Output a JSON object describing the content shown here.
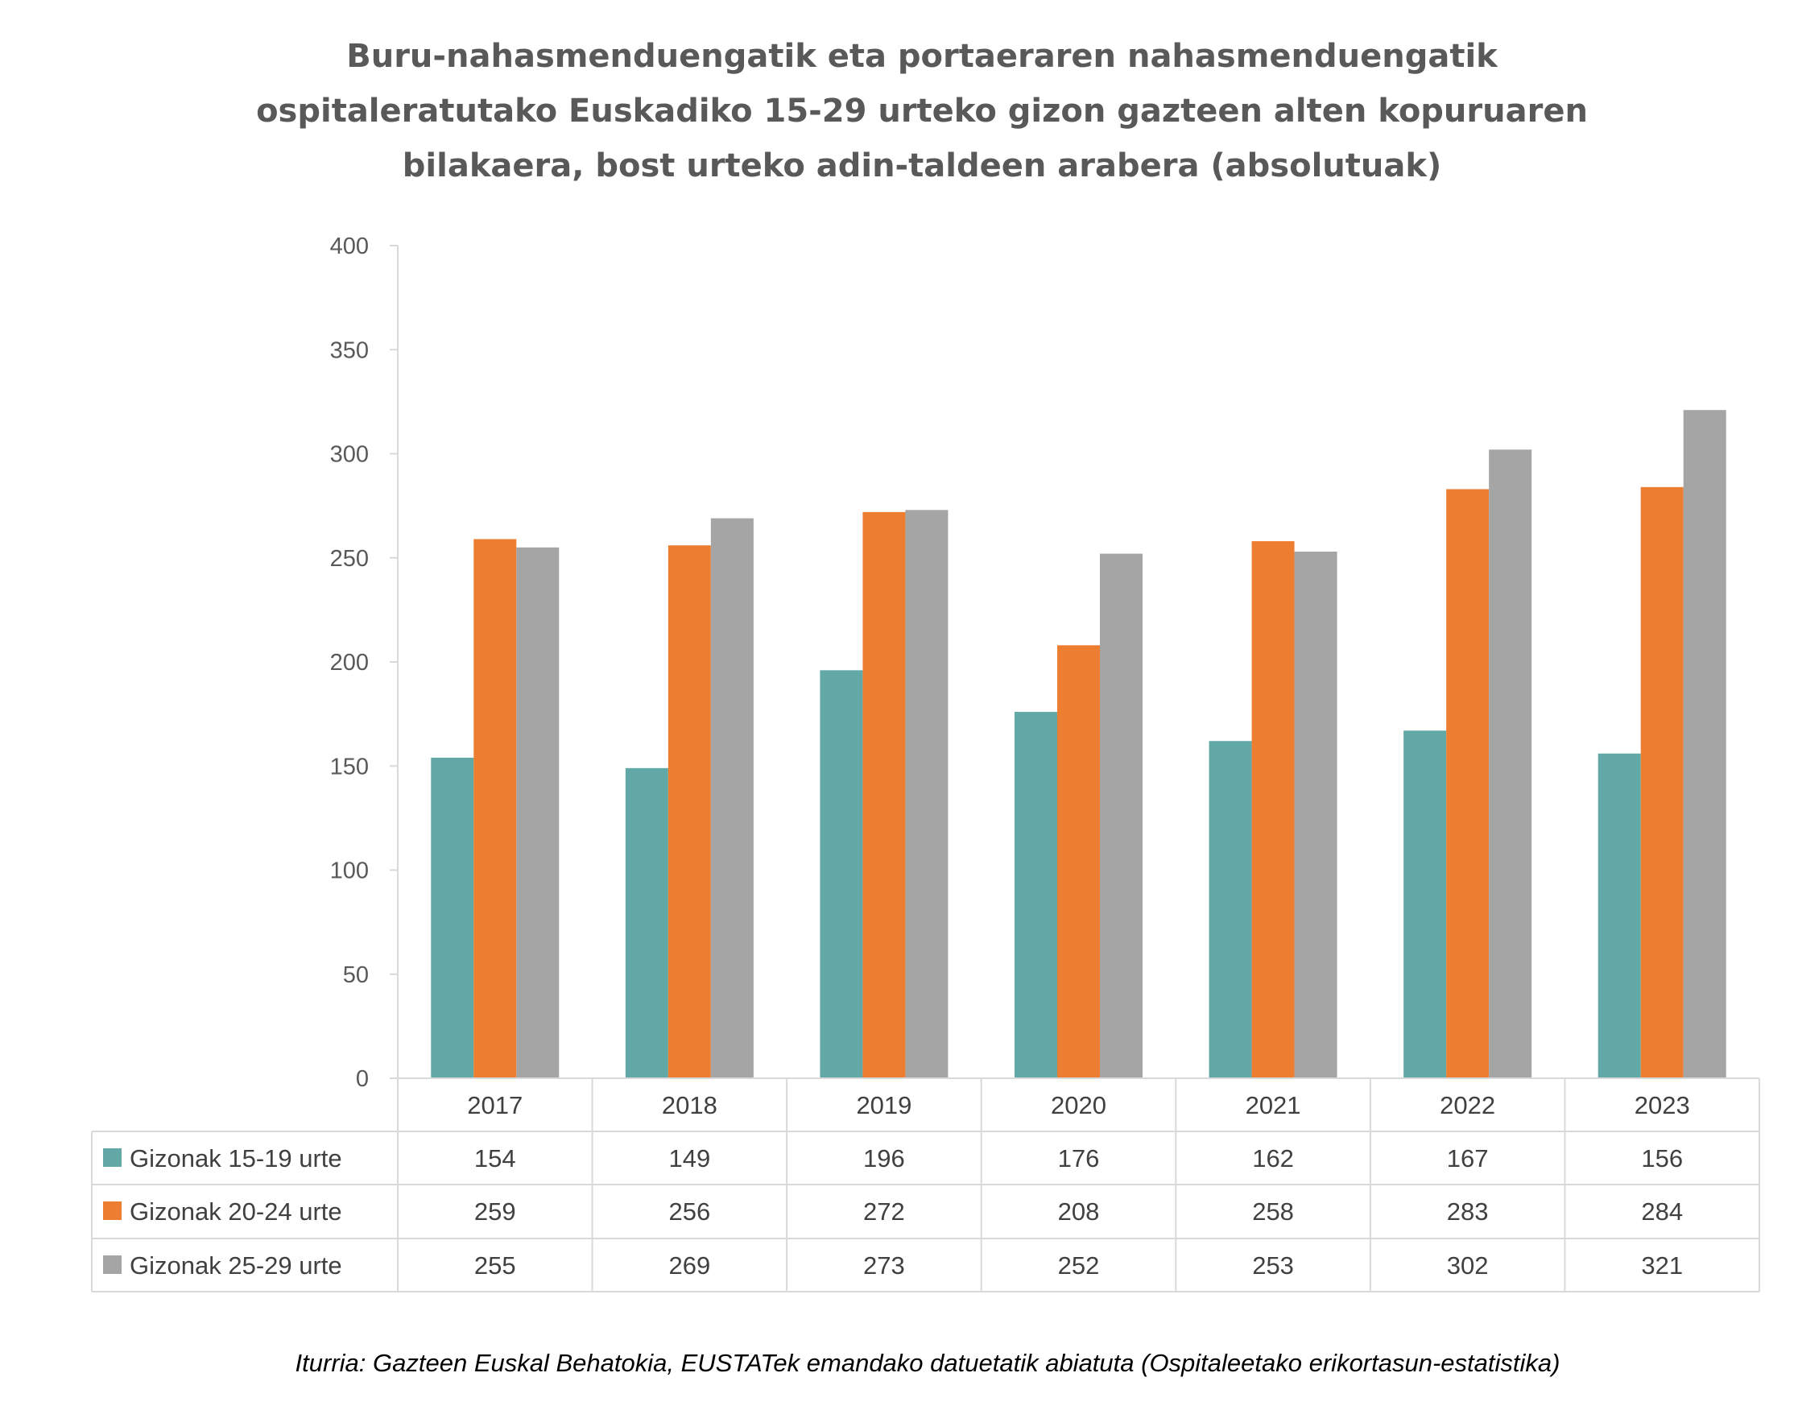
{
  "chart_data": {
    "type": "bar",
    "title": [
      "Buru-nahasmenduengatik eta portaeraren nahasmenduengatik",
      "ospitaleratutako Euskadiko 15-29 urteko gizon gazteen alten kopuruaren",
      "bilakaera, bost urteko adin-taldeen arabera (absolutuak)"
    ],
    "categories": [
      "2017",
      "2018",
      "2019",
      "2020",
      "2021",
      "2022",
      "2023"
    ],
    "series": [
      {
        "name": "Gizonak 15-19 urte",
        "color": "#62A8A6",
        "values": [
          154,
          149,
          196,
          176,
          162,
          167,
          156
        ]
      },
      {
        "name": "Gizonak 20-24 urte",
        "color": "#ED7D31",
        "values": [
          259,
          256,
          272,
          208,
          258,
          283,
          284
        ]
      },
      {
        "name": "Gizonak 25-29 urte",
        "color": "#A5A5A5",
        "values": [
          255,
          269,
          273,
          252,
          253,
          302,
          321
        ]
      }
    ],
    "ylim": [
      0,
      400
    ],
    "yticks": [
      0,
      50,
      100,
      150,
      200,
      250,
      300,
      350,
      400
    ],
    "grid": false,
    "legend": "data-table",
    "source": "Iturria: Gazteen Euskal Behatokia, EUSTATek emandako datuetatik abiatuta (Ospitaleetako erikortasun-estatistika)"
  }
}
